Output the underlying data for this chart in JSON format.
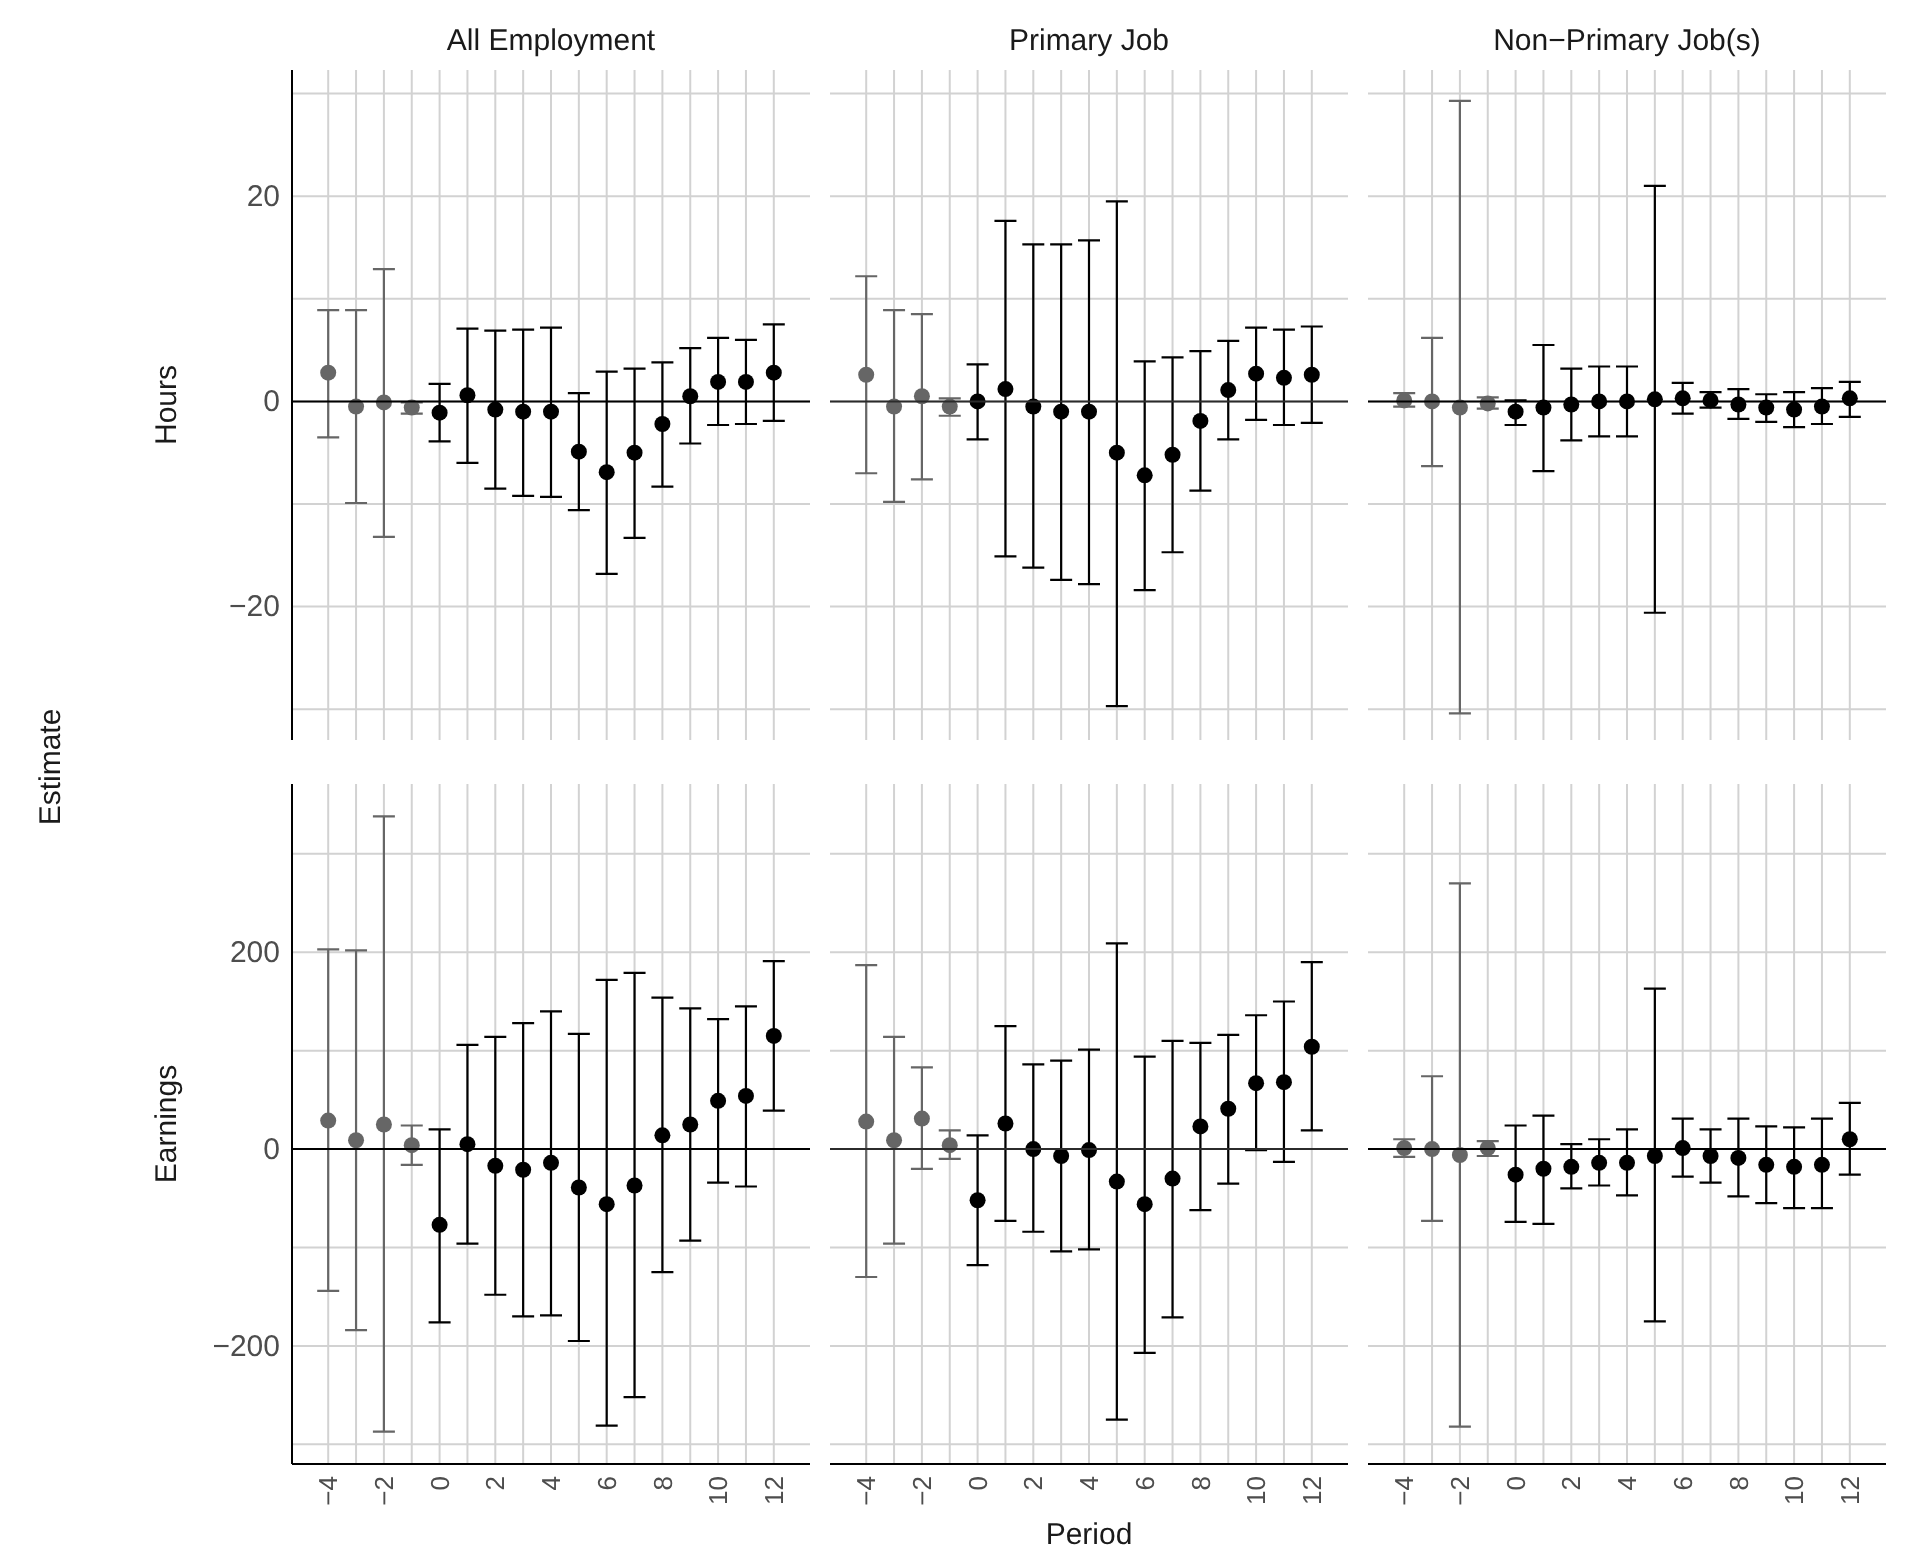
{
  "chart_data": [
    {
      "type": "scatter",
      "title": "All Employment",
      "ylabel": "Hours",
      "annotations": [
        "Estimate"
      ],
      "xlim": [
        -5.3,
        13.3
      ],
      "ylim": [
        -33,
        32.3
      ],
      "xticks": [
        -4,
        {
          "value": -3,
          "label": null
        },
        -2,
        {
          "value": -1,
          "label": null
        },
        0,
        {
          "value": 1,
          "label": null
        },
        2,
        {
          "value": 3,
          "label": null
        },
        4,
        {
          "value": 5,
          "label": null
        },
        6,
        {
          "value": 7,
          "label": null
        },
        8,
        {
          "value": 9,
          "label": null
        },
        10,
        {
          "value": 11,
          "label": null
        },
        12
      ],
      "yticks": [
        {
          "value": -30,
          "label": null
        },
        -20,
        {
          "value": -10,
          "label": null
        },
        0,
        {
          "value": 10,
          "label": null
        },
        20,
        {
          "value": 30,
          "label": null
        }
      ],
      "tick_labels": "y",
      "grid": true,
      "marker": "circle",
      "ref_lines": [
        {
          "axis": "y",
          "value": 0,
          "color": "#000000"
        }
      ],
      "series": [
        {
          "color": "#666666",
          "x": [
            -4,
            -3,
            -2,
            -1
          ],
          "values": [
            2.8,
            -0.5,
            -0.1,
            -0.6
          ],
          "errors": [
            [
              -3.5,
              8.9
            ],
            [
              -9.9,
              8.9
            ],
            [
              -13.2,
              12.9
            ],
            [
              -1.2,
              -0.1
            ]
          ]
        },
        {
          "color": "#000000",
          "x": [
            0,
            1,
            2,
            3,
            4,
            5,
            6,
            7,
            8,
            9,
            10,
            11,
            12
          ],
          "values": [
            -1.1,
            0.6,
            -0.8,
            -1.0,
            -1.0,
            -4.9,
            -6.9,
            -5.0,
            -2.2,
            0.5,
            1.9,
            1.9,
            2.8
          ],
          "errors": [
            [
              -3.9,
              1.7
            ],
            [
              -6.0,
              7.1
            ],
            [
              -8.5,
              6.9
            ],
            [
              -9.2,
              7.0
            ],
            [
              -9.3,
              7.2
            ],
            [
              -10.6,
              0.8
            ],
            [
              -16.8,
              2.9
            ],
            [
              -13.3,
              3.2
            ],
            [
              -8.3,
              3.8
            ],
            [
              -4.1,
              5.2
            ],
            [
              -2.3,
              6.2
            ],
            [
              -2.2,
              6.0
            ],
            [
              -1.9,
              7.5
            ]
          ]
        }
      ]
    },
    {
      "type": "scatter",
      "title": "Primary Job",
      "xlim": [
        -5.3,
        13.3
      ],
      "ylim": [
        -33,
        32.3
      ],
      "xticks": [
        -4,
        {
          "value": -3,
          "label": null
        },
        -2,
        {
          "value": -1,
          "label": null
        },
        0,
        {
          "value": 1,
          "label": null
        },
        2,
        {
          "value": 3,
          "label": null
        },
        4,
        {
          "value": 5,
          "label": null
        },
        6,
        {
          "value": 7,
          "label": null
        },
        8,
        {
          "value": 9,
          "label": null
        },
        10,
        {
          "value": 11,
          "label": null
        },
        12
      ],
      "yticks": [
        {
          "value": -30,
          "label": null
        },
        -20,
        {
          "value": -10,
          "label": null
        },
        0,
        {
          "value": 10,
          "label": null
        },
        20,
        {
          "value": 30,
          "label": null
        }
      ],
      "tick_labels": false,
      "grid": true,
      "marker": "circle",
      "ref_lines": [
        {
          "axis": "y",
          "value": 0,
          "color": "#2b2b2b"
        }
      ],
      "series": [
        {
          "color": "#666666",
          "x": [
            -4,
            -3,
            -2,
            -1
          ],
          "values": [
            2.6,
            -0.5,
            0.5,
            -0.5
          ],
          "errors": [
            [
              -7.0,
              12.2
            ],
            [
              -9.8,
              8.9
            ],
            [
              -7.6,
              8.5
            ],
            [
              -1.4,
              0.3
            ]
          ]
        },
        {
          "color": "#000000",
          "x": [
            0,
            1,
            2,
            3,
            4,
            5,
            6,
            7,
            8,
            9,
            10,
            11,
            12
          ],
          "values": [
            0,
            1.2,
            -0.5,
            -1.0,
            -1.0,
            -5.0,
            -7.2,
            -5.2,
            -1.9,
            1.1,
            2.7,
            2.3,
            2.6
          ],
          "errors": [
            [
              -3.7,
              3.6
            ],
            [
              -15.1,
              17.6
            ],
            [
              -16.2,
              15.3
            ],
            [
              -17.4,
              15.3
            ],
            [
              -17.8,
              15.7
            ],
            [
              -29.7,
              19.5
            ],
            [
              -18.4,
              3.9
            ],
            [
              -14.7,
              4.3
            ],
            [
              -8.7,
              4.9
            ],
            [
              -3.7,
              5.9
            ],
            [
              -1.8,
              7.2
            ],
            [
              -2.3,
              7.0
            ],
            [
              -2.1,
              7.3
            ]
          ]
        }
      ]
    },
    {
      "type": "scatter",
      "title": "Non−Primary Job(s)",
      "xlim": [
        -5.3,
        13.3
      ],
      "ylim": [
        -33,
        32.3
      ],
      "xticks": [
        -4,
        {
          "value": -3,
          "label": null
        },
        -2,
        {
          "value": -1,
          "label": null
        },
        0,
        {
          "value": 1,
          "label": null
        },
        2,
        {
          "value": 3,
          "label": null
        },
        4,
        {
          "value": 5,
          "label": null
        },
        6,
        {
          "value": 7,
          "label": null
        },
        8,
        {
          "value": 9,
          "label": null
        },
        10,
        {
          "value": 11,
          "label": null
        },
        12
      ],
      "yticks": [
        {
          "value": -30,
          "label": null
        },
        -20,
        {
          "value": -10,
          "label": null
        },
        0,
        {
          "value": 10,
          "label": null
        },
        20,
        {
          "value": 30,
          "label": null
        }
      ],
      "tick_labels": false,
      "grid": true,
      "marker": "circle",
      "ref_lines": [
        {
          "axis": "y",
          "value": 0,
          "color": "#000000"
        }
      ],
      "series": [
        {
          "color": "#666666",
          "x": [
            -4,
            -3,
            -2,
            -1
          ],
          "values": [
            0.1,
            0,
            -0.6,
            -0.2
          ],
          "errors": [
            [
              -0.5,
              0.8
            ],
            [
              -6.3,
              6.2
            ],
            [
              -30.4,
              29.3
            ],
            [
              -0.7,
              0.4
            ]
          ]
        },
        {
          "color": "#000000",
          "x": [
            0,
            1,
            2,
            3,
            4,
            5,
            6,
            7,
            8,
            9,
            10,
            11,
            12
          ],
          "values": [
            -1.0,
            -0.6,
            -0.3,
            0,
            0,
            0.2,
            0.3,
            0.1,
            -0.3,
            -0.6,
            -0.8,
            -0.5,
            0.3
          ],
          "errors": [
            [
              -2.3,
              0.1
            ],
            [
              -6.8,
              5.5
            ],
            [
              -3.8,
              3.2
            ],
            [
              -3.4,
              3.4
            ],
            [
              -3.4,
              3.4
            ],
            [
              -20.6,
              21.0
            ],
            [
              -1.2,
              1.8
            ],
            [
              -0.6,
              0.9
            ],
            [
              -1.7,
              1.2
            ],
            [
              -2.0,
              0.7
            ],
            [
              -2.5,
              0.9
            ],
            [
              -2.2,
              1.3
            ],
            [
              -1.5,
              1.9
            ]
          ]
        }
      ]
    },
    {
      "type": "scatter",
      "ylabel": "Earnings",
      "xlim": [
        -5.3,
        13.3
      ],
      "ylim": [
        -320,
        371
      ],
      "xticks": [
        -4,
        {
          "value": -3,
          "label": null
        },
        -2,
        {
          "value": -1,
          "label": null
        },
        0,
        {
          "value": 1,
          "label": null
        },
        2,
        {
          "value": 3,
          "label": null
        },
        4,
        {
          "value": 5,
          "label": null
        },
        6,
        {
          "value": 7,
          "label": null
        },
        8,
        {
          "value": 9,
          "label": null
        },
        10,
        {
          "value": 11,
          "label": null
        },
        12
      ],
      "yticks": [
        {
          "value": -300,
          "label": null
        },
        -200,
        {
          "value": -100,
          "label": null
        },
        0,
        {
          "value": 100,
          "label": null
        },
        200,
        {
          "value": 300,
          "label": null
        }
      ],
      "grid": true,
      "marker": "circle",
      "ref_lines": [
        {
          "axis": "y",
          "value": 0,
          "color": "#000000"
        }
      ],
      "series": [
        {
          "color": "#666666",
          "x": [
            -4,
            -3,
            -2,
            -1
          ],
          "values": [
            29,
            9,
            25,
            4
          ],
          "errors": [
            [
              -144,
              203
            ],
            [
              -184,
              202
            ],
            [
              -287,
              338
            ],
            [
              -16,
              24
            ]
          ]
        },
        {
          "color": "#000000",
          "x": [
            0,
            1,
            2,
            3,
            4,
            5,
            6,
            7,
            8,
            9,
            10,
            11,
            12
          ],
          "values": [
            -77,
            5,
            -17,
            -21,
            -14,
            -39,
            -56,
            -37,
            14,
            25,
            49,
            54,
            115
          ],
          "errors": [
            [
              -176,
              20
            ],
            [
              -96,
              106
            ],
            [
              -148,
              114
            ],
            [
              -170,
              128
            ],
            [
              -169,
              140
            ],
            [
              -195,
              117
            ],
            [
              -281,
              172
            ],
            [
              -252,
              179
            ],
            [
              -125,
              154
            ],
            [
              -93,
              143
            ],
            [
              -34,
              132
            ],
            [
              -38,
              145
            ],
            [
              39,
              191
            ]
          ]
        }
      ]
    },
    {
      "type": "scatter",
      "xlabel": "Period",
      "xlim": [
        -5.3,
        13.3
      ],
      "ylim": [
        -320,
        371
      ],
      "xticks": [
        -4,
        {
          "value": -3,
          "label": null
        },
        -2,
        {
          "value": -1,
          "label": null
        },
        0,
        {
          "value": 1,
          "label": null
        },
        2,
        {
          "value": 3,
          "label": null
        },
        4,
        {
          "value": 5,
          "label": null
        },
        6,
        {
          "value": 7,
          "label": null
        },
        8,
        {
          "value": 9,
          "label": null
        },
        10,
        {
          "value": 11,
          "label": null
        },
        12
      ],
      "yticks": [
        {
          "value": -300,
          "label": null
        },
        -200,
        {
          "value": -100,
          "label": null
        },
        0,
        {
          "value": 100,
          "label": null
        },
        200,
        {
          "value": 300,
          "label": null
        }
      ],
      "tick_labels": "x",
      "grid": true,
      "marker": "circle",
      "ref_lines": [
        {
          "axis": "y",
          "value": 0,
          "color": "#2b2b2b"
        }
      ],
      "series": [
        {
          "color": "#666666",
          "x": [
            -4,
            -3,
            -2,
            -1
          ],
          "values": [
            28,
            9,
            31,
            4
          ],
          "errors": [
            [
              -130,
              187
            ],
            [
              -96,
              114
            ],
            [
              -20,
              83
            ],
            [
              -10,
              19
            ]
          ]
        },
        {
          "color": "#000000",
          "x": [
            0,
            1,
            2,
            3,
            4,
            5,
            6,
            7,
            8,
            9,
            10,
            11,
            12
          ],
          "values": [
            -52,
            26,
            0,
            -7,
            -1,
            -33,
            -56,
            -30,
            23,
            41,
            67,
            68,
            104
          ],
          "errors": [
            [
              -118,
              14
            ],
            [
              -73,
              125
            ],
            [
              -84,
              86
            ],
            [
              -104,
              90
            ],
            [
              -102,
              101
            ],
            [
              -275,
              209
            ],
            [
              -207,
              94
            ],
            [
              -171,
              110
            ],
            [
              -62,
              108
            ],
            [
              -35,
              116
            ],
            [
              -1,
              136
            ],
            [
              -13,
              150
            ],
            [
              19,
              190
            ]
          ]
        }
      ]
    },
    {
      "type": "scatter",
      "xlim": [
        -5.3,
        13.3
      ],
      "ylim": [
        -320,
        371
      ],
      "xticks": [
        -4,
        {
          "value": -3,
          "label": null
        },
        -2,
        {
          "value": -1,
          "label": null
        },
        0,
        {
          "value": 1,
          "label": null
        },
        2,
        {
          "value": 3,
          "label": null
        },
        4,
        {
          "value": 5,
          "label": null
        },
        6,
        {
          "value": 7,
          "label": null
        },
        8,
        {
          "value": 9,
          "label": null
        },
        10,
        {
          "value": 11,
          "label": null
        },
        12
      ],
      "yticks": [
        {
          "value": -300,
          "label": null
        },
        -200,
        {
          "value": -100,
          "label": null
        },
        0,
        {
          "value": 100,
          "label": null
        },
        200,
        {
          "value": 300,
          "label": null
        }
      ],
      "tick_labels": "x",
      "grid": true,
      "marker": "circle",
      "ref_lines": [
        {
          "axis": "y",
          "value": 0,
          "color": "#000000"
        }
      ],
      "series": [
        {
          "color": "#666666",
          "x": [
            -4,
            -3,
            -2,
            -1
          ],
          "values": [
            1,
            0,
            -6,
            1
          ],
          "errors": [
            [
              -8,
              10
            ],
            [
              -73,
              74
            ],
            [
              -282,
              270
            ],
            [
              -7,
              8
            ]
          ]
        },
        {
          "color": "#000000",
          "x": [
            0,
            1,
            2,
            3,
            4,
            5,
            6,
            7,
            8,
            9,
            10,
            11,
            12
          ],
          "values": [
            -26,
            -20,
            -18,
            -14,
            -14,
            -7,
            1,
            -7,
            -9,
            -16,
            -18,
            -16,
            10
          ],
          "errors": [
            [
              -74,
              24
            ],
            [
              -76,
              34
            ],
            [
              -40,
              5
            ],
            [
              -37,
              10
            ],
            [
              -47,
              20
            ],
            [
              -175,
              163
            ],
            [
              -28,
              31
            ],
            [
              -34,
              20
            ],
            [
              -48,
              31
            ],
            [
              -55,
              23
            ],
            [
              -60,
              22
            ],
            [
              -60,
              31
            ],
            [
              -26,
              47
            ]
          ]
        }
      ]
    }
  ]
}
